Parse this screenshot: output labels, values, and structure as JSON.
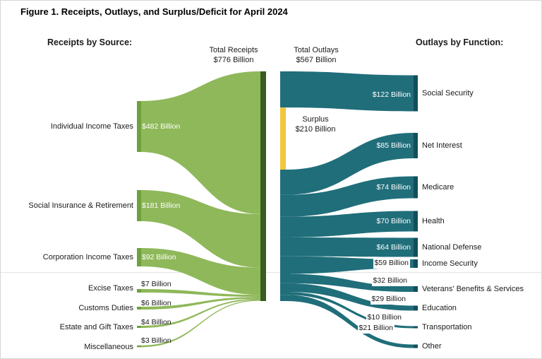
{
  "header": {
    "left": "Receipts by Source:",
    "right": "Outlays by Function:"
  },
  "center": {
    "total_receipts_label": "Total Receipts",
    "total_receipts_value": "$776 Billion",
    "total_outlays_label": "Total Outlays",
    "total_outlays_value": "$567 Billion",
    "surplus_label": "Surplus",
    "surplus_value": "$210 Billion"
  },
  "colors": {
    "receipts_flow": "#8FB85A",
    "receipts_node": "#6FA03E",
    "receipts_bar": "#3B5B22",
    "outlays_flow": "#206E7A",
    "outlays_node": "#114F5A",
    "surplus": "#F2C63E"
  },
  "chart_data": {
    "type": "sankey",
    "title": "Figure 1. Receipts, Outlays, and Surplus/Deficit for April 2024",
    "unit": "billions of US dollars",
    "period": "April 2024",
    "totals": {
      "receipts": 776,
      "outlays": 567,
      "surplus": 210
    },
    "receipts_by_source": [
      {
        "name": "Individual Income Taxes",
        "value": 482,
        "value_label": "$482 Billion"
      },
      {
        "name": "Social Insurance & Retirement",
        "value": 181,
        "value_label": "$181 Billion"
      },
      {
        "name": "Corporation Income Taxes",
        "value": 92,
        "value_label": "$92 Billion"
      },
      {
        "name": "Excise Taxes",
        "value": 7,
        "value_label": "$7 Billion"
      },
      {
        "name": "Customs Duties",
        "value": 6,
        "value_label": "$6 Billion"
      },
      {
        "name": "Estate and Gift Taxes",
        "value": 4,
        "value_label": "$4 Billion"
      },
      {
        "name": "Miscellaneous",
        "value": 3,
        "value_label": "$3 Billion"
      }
    ],
    "outlays_by_function": [
      {
        "name": "Social Security",
        "value": 122,
        "value_label": "$122 Billion"
      },
      {
        "name": "Net Interest",
        "value": 85,
        "value_label": "$85 Billion"
      },
      {
        "name": "Medicare",
        "value": 74,
        "value_label": "$74 Billion"
      },
      {
        "name": "Health",
        "value": 70,
        "value_label": "$70 Billion"
      },
      {
        "name": "National Defense",
        "value": 64,
        "value_label": "$64 Billion"
      },
      {
        "name": "Income Security",
        "value": 59,
        "value_label": "$59 Billion"
      },
      {
        "name": "Veterans' Benefits & Services",
        "value": 32,
        "value_label": "$32 Billion"
      },
      {
        "name": "Education",
        "value": 29,
        "value_label": "$29 Billion"
      },
      {
        "name": "Transportation",
        "value": 10,
        "value_label": "$10 Billion"
      },
      {
        "name": "Other",
        "value": 21,
        "value_label": "$21 Billion"
      }
    ]
  }
}
